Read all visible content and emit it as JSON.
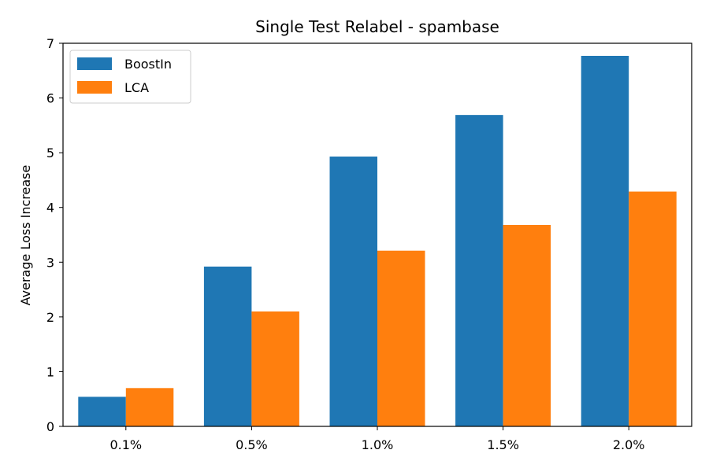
{
  "chart_data": {
    "type": "bar",
    "title": "Single Test Relabel - spambase",
    "xlabel": "",
    "ylabel": "Average Loss Increase",
    "categories": [
      "0.1%",
      "0.5%",
      "1.0%",
      "1.5%",
      "2.0%"
    ],
    "series": [
      {
        "name": "BoostIn",
        "color": "#1f77b4",
        "values": [
          0.54,
          2.92,
          4.93,
          5.69,
          6.77
        ]
      },
      {
        "name": "LCA",
        "color": "#ff7f0e",
        "values": [
          0.7,
          2.1,
          3.21,
          3.68,
          4.29
        ]
      }
    ],
    "ylim": [
      0,
      7
    ],
    "yticks": [
      "0",
      "1",
      "2",
      "3",
      "4",
      "5",
      "6",
      "7"
    ],
    "legend_position": "top-left",
    "grid": false
  }
}
